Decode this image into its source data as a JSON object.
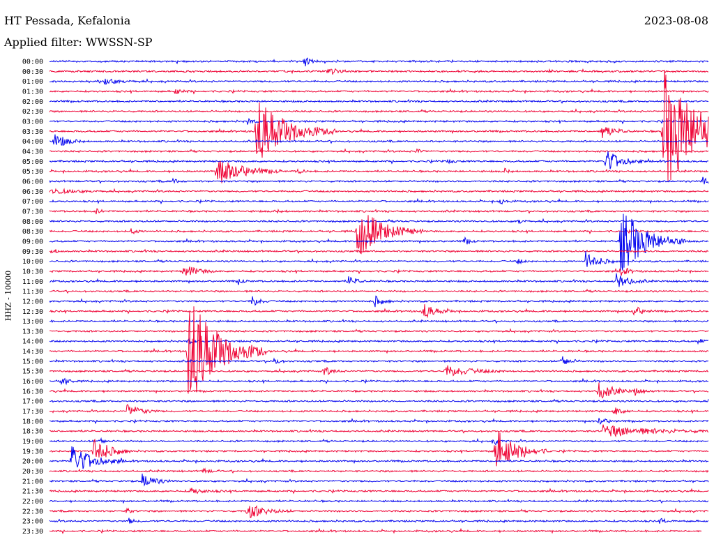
{
  "header": {
    "station": "HT Pessada, Kefalonia",
    "date": "2023-08-08",
    "filter_text": "Applied filter: WWSSN-SP"
  },
  "y_axis_label": "HHZ - 10000",
  "colors": {
    "odd_rows": "#0000ee",
    "even_rows": "#ee0033"
  },
  "chart_data": {
    "type": "line",
    "time_labels": [
      "00:00",
      "00:30",
      "01:00",
      "01:30",
      "02:00",
      "02:30",
      "03:00",
      "03:30",
      "04:00",
      "04:30",
      "05:00",
      "05:30",
      "06:00",
      "06:30",
      "07:00",
      "07:30",
      "08:00",
      "08:30",
      "09:00",
      "09:30",
      "10:00",
      "10:30",
      "11:00",
      "11:30",
      "12:00",
      "12:30",
      "13:00",
      "13:30",
      "14:00",
      "14:30",
      "15:00",
      "15:30",
      "16:00",
      "16:30",
      "17:00",
      "17:30",
      "18:00",
      "18:30",
      "19:00",
      "19:30",
      "20:00",
      "20:30",
      "21:00",
      "21:30",
      "22:00",
      "22:30",
      "23:00",
      "23:30"
    ],
    "minutes_per_line": 30,
    "events": [
      {
        "line": 0,
        "minute": 11.6,
        "amp": 0.6,
        "dur": 0.2
      },
      {
        "line": 1,
        "minute": 12.7,
        "amp": 0.6,
        "dur": 0.3
      },
      {
        "line": 2,
        "minute": 2.5,
        "amp": 0.3,
        "dur": 0.6
      },
      {
        "line": 3,
        "minute": 5.7,
        "amp": 0.3,
        "dur": 0.3
      },
      {
        "line": 6,
        "minute": 9.0,
        "amp": 0.4,
        "dur": 0.2
      },
      {
        "line": 7,
        "minute": 9.4,
        "amp": 3.5,
        "dur": 1.2
      },
      {
        "line": 7,
        "minute": 25.1,
        "amp": 0.8,
        "dur": 0.5
      },
      {
        "line": 7,
        "minute": 27.9,
        "amp": 6.5,
        "dur": 1.5
      },
      {
        "line": 7,
        "minute": 29.9,
        "amp": 0.8,
        "dur": 0.3
      },
      {
        "line": 8,
        "minute": 0.2,
        "amp": 0.8,
        "dur": 0.5
      },
      {
        "line": 9,
        "minute": 16.7,
        "amp": 0.3,
        "dur": 0.2
      },
      {
        "line": 10,
        "minute": 18.1,
        "amp": 0.3,
        "dur": 0.2
      },
      {
        "line": 10,
        "minute": 25.3,
        "amp": 1.3,
        "dur": 0.6
      },
      {
        "line": 11,
        "minute": 7.6,
        "amp": 1.5,
        "dur": 1.0
      },
      {
        "line": 11,
        "minute": 11.3,
        "amp": 0.3,
        "dur": 0.2
      },
      {
        "line": 11,
        "minute": 20.7,
        "amp": 0.3,
        "dur": 0.2
      },
      {
        "line": 12,
        "minute": 5.6,
        "amp": 0.3,
        "dur": 0.2
      },
      {
        "line": 12,
        "minute": 29.7,
        "amp": 0.5,
        "dur": 0.3
      },
      {
        "line": 13,
        "minute": 0.0,
        "amp": 0.3,
        "dur": 0.9
      },
      {
        "line": 14,
        "minute": 20.5,
        "amp": 0.4,
        "dur": 0.2
      },
      {
        "line": 15,
        "minute": 2.1,
        "amp": 0.3,
        "dur": 0.2
      },
      {
        "line": 15,
        "minute": 10.3,
        "amp": 0.2,
        "dur": 0.2
      },
      {
        "line": 16,
        "minute": 21.3,
        "amp": 0.3,
        "dur": 0.2
      },
      {
        "line": 17,
        "minute": 3.7,
        "amp": 0.3,
        "dur": 0.2
      },
      {
        "line": 17,
        "minute": 14.0,
        "amp": 2.7,
        "dur": 1.0
      },
      {
        "line": 18,
        "minute": 18.9,
        "amp": 0.4,
        "dur": 0.2
      },
      {
        "line": 18,
        "minute": 26.0,
        "amp": 3.6,
        "dur": 1.0
      },
      {
        "line": 19,
        "minute": 0.1,
        "amp": 0.3,
        "dur": 0.2
      },
      {
        "line": 20,
        "minute": 21.3,
        "amp": 0.3,
        "dur": 0.2
      },
      {
        "line": 20,
        "minute": 24.4,
        "amp": 1.0,
        "dur": 0.5
      },
      {
        "line": 21,
        "minute": 6.1,
        "amp": 0.8,
        "dur": 0.5
      },
      {
        "line": 21,
        "minute": 26.0,
        "amp": 0.5,
        "dur": 0.3
      },
      {
        "line": 22,
        "minute": 8.6,
        "amp": 0.3,
        "dur": 0.2
      },
      {
        "line": 22,
        "minute": 13.6,
        "amp": 0.6,
        "dur": 0.3
      },
      {
        "line": 22,
        "minute": 25.8,
        "amp": 0.8,
        "dur": 0.5
      },
      {
        "line": 24,
        "minute": 9.2,
        "amp": 0.6,
        "dur": 0.3
      },
      {
        "line": 24,
        "minute": 14.8,
        "amp": 0.6,
        "dur": 0.3
      },
      {
        "line": 25,
        "minute": 17.0,
        "amp": 0.8,
        "dur": 0.5
      },
      {
        "line": 25,
        "minute": 26.6,
        "amp": 0.6,
        "dur": 0.3
      },
      {
        "line": 28,
        "minute": 6.3,
        "amp": 0.3,
        "dur": 0.2
      },
      {
        "line": 28,
        "minute": 29.5,
        "amp": 0.3,
        "dur": 0.2
      },
      {
        "line": 29,
        "minute": 6.3,
        "amp": 6.0,
        "dur": 1.2
      },
      {
        "line": 30,
        "minute": 10.2,
        "amp": 0.4,
        "dur": 0.2
      },
      {
        "line": 30,
        "minute": 23.3,
        "amp": 0.6,
        "dur": 0.3
      },
      {
        "line": 31,
        "minute": 12.5,
        "amp": 0.5,
        "dur": 0.3
      },
      {
        "line": 31,
        "minute": 18.0,
        "amp": 0.6,
        "dur": 1.0
      },
      {
        "line": 32,
        "minute": 0.5,
        "amp": 0.5,
        "dur": 0.3
      },
      {
        "line": 33,
        "minute": 25.0,
        "amp": 0.9,
        "dur": 0.6
      },
      {
        "line": 33,
        "minute": 26.6,
        "amp": 0.4,
        "dur": 0.3
      },
      {
        "line": 35,
        "minute": 3.5,
        "amp": 0.8,
        "dur": 0.5
      },
      {
        "line": 35,
        "minute": 25.7,
        "amp": 0.5,
        "dur": 0.3
      },
      {
        "line": 36,
        "minute": 25.0,
        "amp": 0.4,
        "dur": 0.3
      },
      {
        "line": 37,
        "minute": 25.2,
        "amp": 0.6,
        "dur": 2.0
      },
      {
        "line": 38,
        "minute": 2.3,
        "amp": 0.3,
        "dur": 0.2
      },
      {
        "line": 38,
        "minute": 20.2,
        "amp": 0.4,
        "dur": 0.2
      },
      {
        "line": 39,
        "minute": 2.0,
        "amp": 1.5,
        "dur": 0.6
      },
      {
        "line": 39,
        "minute": 20.3,
        "amp": 2.3,
        "dur": 0.8
      },
      {
        "line": 40,
        "minute": 1.0,
        "amp": 1.7,
        "dur": 0.8
      },
      {
        "line": 41,
        "minute": 7.0,
        "amp": 0.3,
        "dur": 0.3
      },
      {
        "line": 42,
        "minute": 4.2,
        "amp": 0.8,
        "dur": 0.5
      },
      {
        "line": 43,
        "minute": 6.4,
        "amp": 0.3,
        "dur": 0.6
      },
      {
        "line": 45,
        "minute": 3.5,
        "amp": 0.3,
        "dur": 0.2
      },
      {
        "line": 45,
        "minute": 9.0,
        "amp": 0.8,
        "dur": 0.7
      },
      {
        "line": 46,
        "minute": 3.6,
        "amp": 0.3,
        "dur": 0.2
      },
      {
        "line": 46,
        "minute": 27.8,
        "amp": 0.3,
        "dur": 0.2
      }
    ],
    "last_line_data_until_minute": 29.7
  }
}
